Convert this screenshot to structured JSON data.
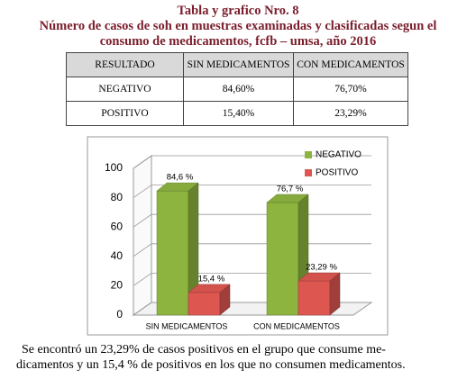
{
  "title": [
    "Tabla y grafico Nro. 8",
    "Número de casos de soh en muestras examinadas y clasificadas segun el",
    "consumo de medicamentos, fcfb – umsa, año 2016"
  ],
  "table": {
    "header": [
      "RESULTADO",
      "SIN MEDICAMENTOS",
      "CON MEDICAMENTOS"
    ],
    "rows": [
      [
        "NEGATIVO",
        "84,60%",
        "76,70%"
      ],
      [
        "POSITIVO",
        "15,40%",
        "23,29%"
      ]
    ]
  },
  "chart_data": {
    "type": "bar3d",
    "categories": [
      "SIN MEDICAMENTOS",
      "CON MEDICAMENTOS"
    ],
    "series": [
      {
        "name": "NEGATIVO",
        "color": "#8db43f",
        "values": [
          84.6,
          76.7
        ],
        "value_labels": [
          "84,6 %",
          "76,7 %"
        ]
      },
      {
        "name": "POSITIVO",
        "color": "#dd5650",
        "values": [
          15.4,
          23.29
        ],
        "value_labels": [
          "15,4 %",
          "23,29 %"
        ]
      }
    ],
    "ylim": [
      0,
      100
    ],
    "yticks": [
      0,
      20,
      40,
      60,
      80,
      100
    ],
    "grid": true,
    "legend": "upper right"
  },
  "paragraph": [
    "Se encontró un 23,29% de casos positivos en el grupo que consume me-",
    "dicamentos y un 15,4 % de positivos en los que no consumen medicamentos."
  ]
}
